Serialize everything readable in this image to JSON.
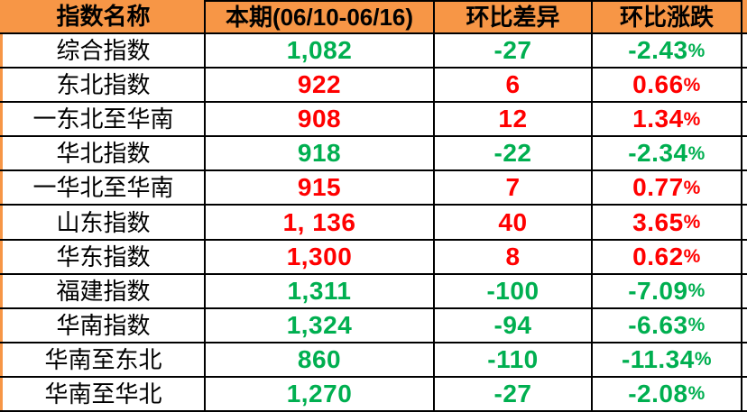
{
  "table": {
    "headers": [
      "指数名称",
      "本期(06/10-06/16)",
      "环比差异",
      "环比涨跌"
    ],
    "rows": [
      {
        "name": "综合指数",
        "current": "1,082",
        "diff": "-27",
        "pct": "-2.43%",
        "trend": "down"
      },
      {
        "name": "东北指数",
        "current": "922",
        "diff": "6",
        "pct": "0.66%",
        "trend": "up"
      },
      {
        "name": "一东北至华南",
        "current": "908",
        "diff": "12",
        "pct": "1.34%",
        "trend": "up"
      },
      {
        "name": "华北指数",
        "current": "918",
        "diff": "-22",
        "pct": "-2.34%",
        "trend": "down"
      },
      {
        "name": "一华北至华南",
        "current": "915",
        "diff": "7",
        "pct": "0.77%",
        "trend": "up"
      },
      {
        "name": "山东指数",
        "current": "1, 136",
        "diff": "40",
        "pct": "3.65%",
        "trend": "up"
      },
      {
        "name": "华东指数",
        "current": "1,300",
        "diff": "8",
        "pct": "0.62%",
        "trend": "up"
      },
      {
        "name": "福建指数",
        "current": "1,311",
        "diff": "-100",
        "pct": "-7.09%",
        "trend": "down"
      },
      {
        "name": "华南指数",
        "current": "1,324",
        "diff": "-94",
        "pct": "-6.63%",
        "trend": "down"
      },
      {
        "name": "华南至东北",
        "current": "860",
        "diff": "-110",
        "pct": "-11.34%",
        "trend": "down"
      },
      {
        "name": "华南至华北",
        "current": "1,270",
        "diff": "-27",
        "pct": "-2.08%",
        "trend": "down"
      }
    ],
    "colors": {
      "header_bg": "#F79646",
      "up": "#FF0000",
      "down": "#00AF50",
      "border": "#000000"
    }
  }
}
